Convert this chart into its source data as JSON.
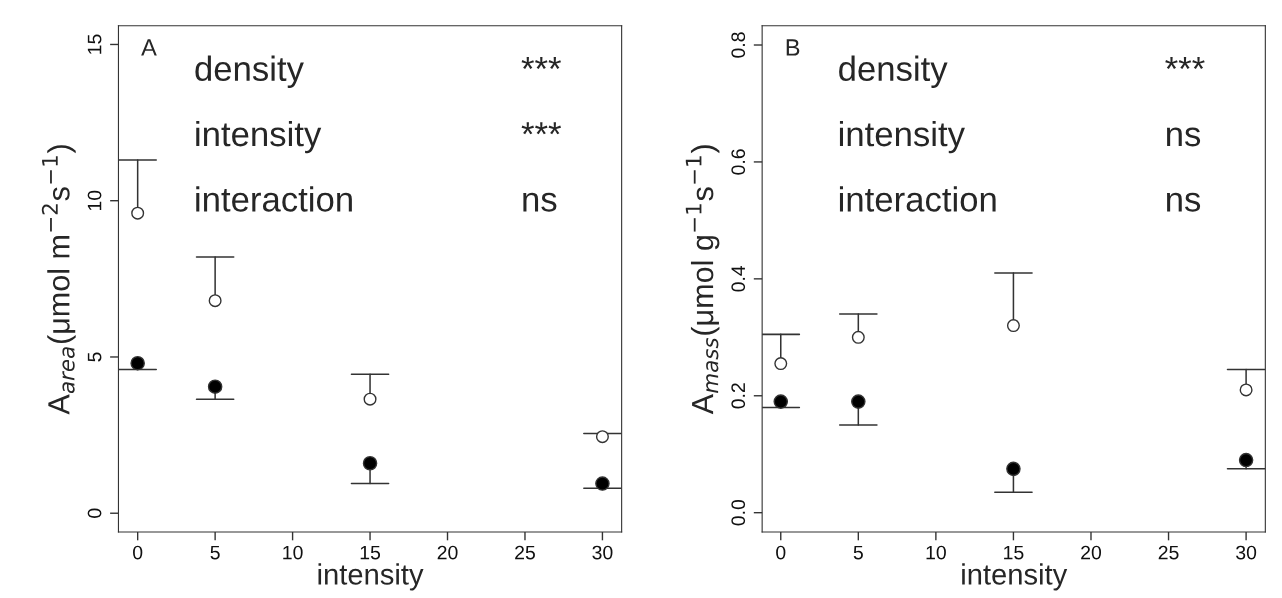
{
  "chart_data": [
    {
      "type": "scatter",
      "xlabel": "intensity",
      "ylabel": "A$_{area}$(μmol m$^{−2}$s$^{−1}$)",
      "x": [
        0,
        5,
        15,
        30
      ],
      "xlim": [
        -1.24,
        31.24
      ],
      "xticks": [
        0,
        5,
        10,
        15,
        20,
        25,
        30
      ],
      "ylim": [
        -0.6,
        15.6
      ],
      "yticks": [
        0,
        5,
        10,
        15
      ],
      "grid": false,
      "legend": false,
      "marker": "circle",
      "annotations": [
        "A",
        "density",
        "***",
        "intensity",
        "***",
        "interaction",
        "ns"
      ],
      "series": [
        {
          "color": "#ffffff",
          "values": [
            9.6,
            6.8,
            3.65,
            2.45
          ],
          "errors": [
            [
              9.6,
              11.3
            ],
            [
              6.8,
              8.2
            ],
            [
              3.65,
              4.45
            ],
            [
              2.45,
              2.55
            ]
          ]
        },
        {
          "color": "#000000",
          "values": [
            4.8,
            4.05,
            1.6,
            0.95
          ],
          "errors": [
            [
              4.6,
              4.8
            ],
            [
              3.65,
              4.05
            ],
            [
              0.95,
              1.6
            ],
            [
              0.8,
              0.95
            ]
          ]
        }
      ]
    },
    {
      "type": "scatter",
      "xlabel": "intensity",
      "ylabel": "A$_{mass}$(μmol g$^{−1}$s$^{−1}$)",
      "x": [
        0,
        5,
        15,
        30
      ],
      "xlim": [
        -1.2,
        31.24
      ],
      "xticks": [
        0,
        5,
        10,
        15,
        20,
        25,
        30
      ],
      "ylim": [
        -0.033,
        0.833
      ],
      "yticks": [
        {
          "value": 0,
          "label": "0.0"
        },
        {
          "value": 0.2,
          "label": "0.2"
        },
        {
          "value": 0.4,
          "label": "0.4"
        },
        {
          "value": 0.6,
          "label": "0.6"
        },
        {
          "value": 0.8,
          "label": "0.8"
        }
      ],
      "grid": false,
      "legend": false,
      "marker": "circle",
      "annotations": [
        "B",
        "density",
        "***",
        "intensity",
        "ns",
        "interaction",
        "ns"
      ],
      "series": [
        {
          "color": "#ffffff",
          "values": [
            0.255,
            0.3,
            0.32,
            0.21
          ],
          "errors": [
            [
              0.255,
              0.305
            ],
            [
              0.3,
              0.34
            ],
            [
              0.32,
              0.41
            ],
            [
              0.21,
              0.245
            ]
          ]
        },
        {
          "color": "#000000",
          "values": [
            0.19,
            0.19,
            0.075,
            0.09
          ],
          "errors": [
            [
              0.18,
              0.19
            ],
            [
              0.15,
              0.19
            ],
            [
              0.035,
              0.075
            ],
            [
              0.075,
              0.09
            ]
          ]
        }
      ]
    }
  ]
}
